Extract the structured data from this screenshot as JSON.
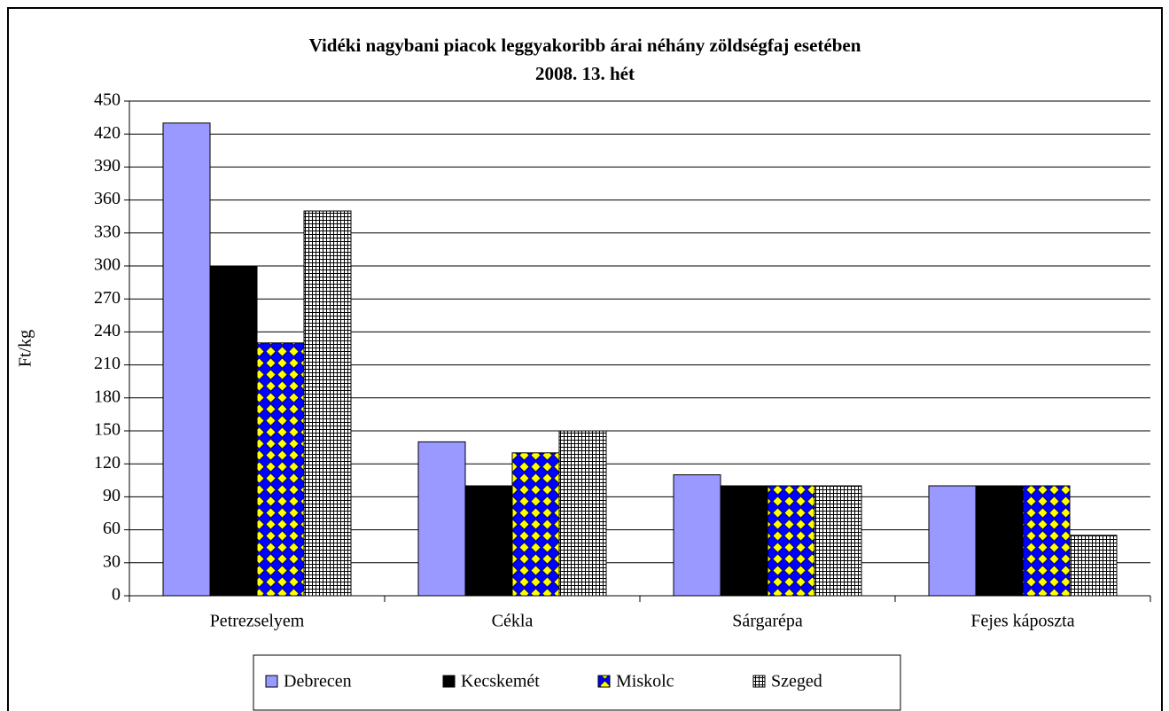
{
  "chart_data": {
    "type": "bar",
    "title": "Vidéki nagybani piacok leggyakoribb árai néhány zöldségfaj esetében",
    "subtitle": "2008. 13. hét",
    "y_label": "Ft/kg",
    "categories": [
      "Petrezselyem",
      "Cékla",
      "Sárgarépa",
      "Fejes káposzta"
    ],
    "series": [
      {
        "name": "Debrecen",
        "color": "#9999ff",
        "values": [
          430,
          140,
          110,
          100
        ]
      },
      {
        "name": "Kecskemét",
        "color": "#000000",
        "values": [
          300,
          100,
          100,
          100
        ]
      },
      {
        "name": "Miskolc",
        "color": "#0000ff",
        "pattern": "diamond",
        "values": [
          230,
          130,
          100,
          100
        ]
      },
      {
        "name": "Szeged",
        "color": "#ffffff",
        "pattern": "grid",
        "values": [
          350,
          150,
          100,
          55
        ]
      }
    ],
    "ylim": [
      0,
      450
    ],
    "yticks": [
      0,
      30,
      60,
      90,
      120,
      150,
      180,
      210,
      240,
      270,
      300,
      330,
      360,
      390,
      420,
      450
    ],
    "grid": true,
    "legend": "bottom"
  }
}
